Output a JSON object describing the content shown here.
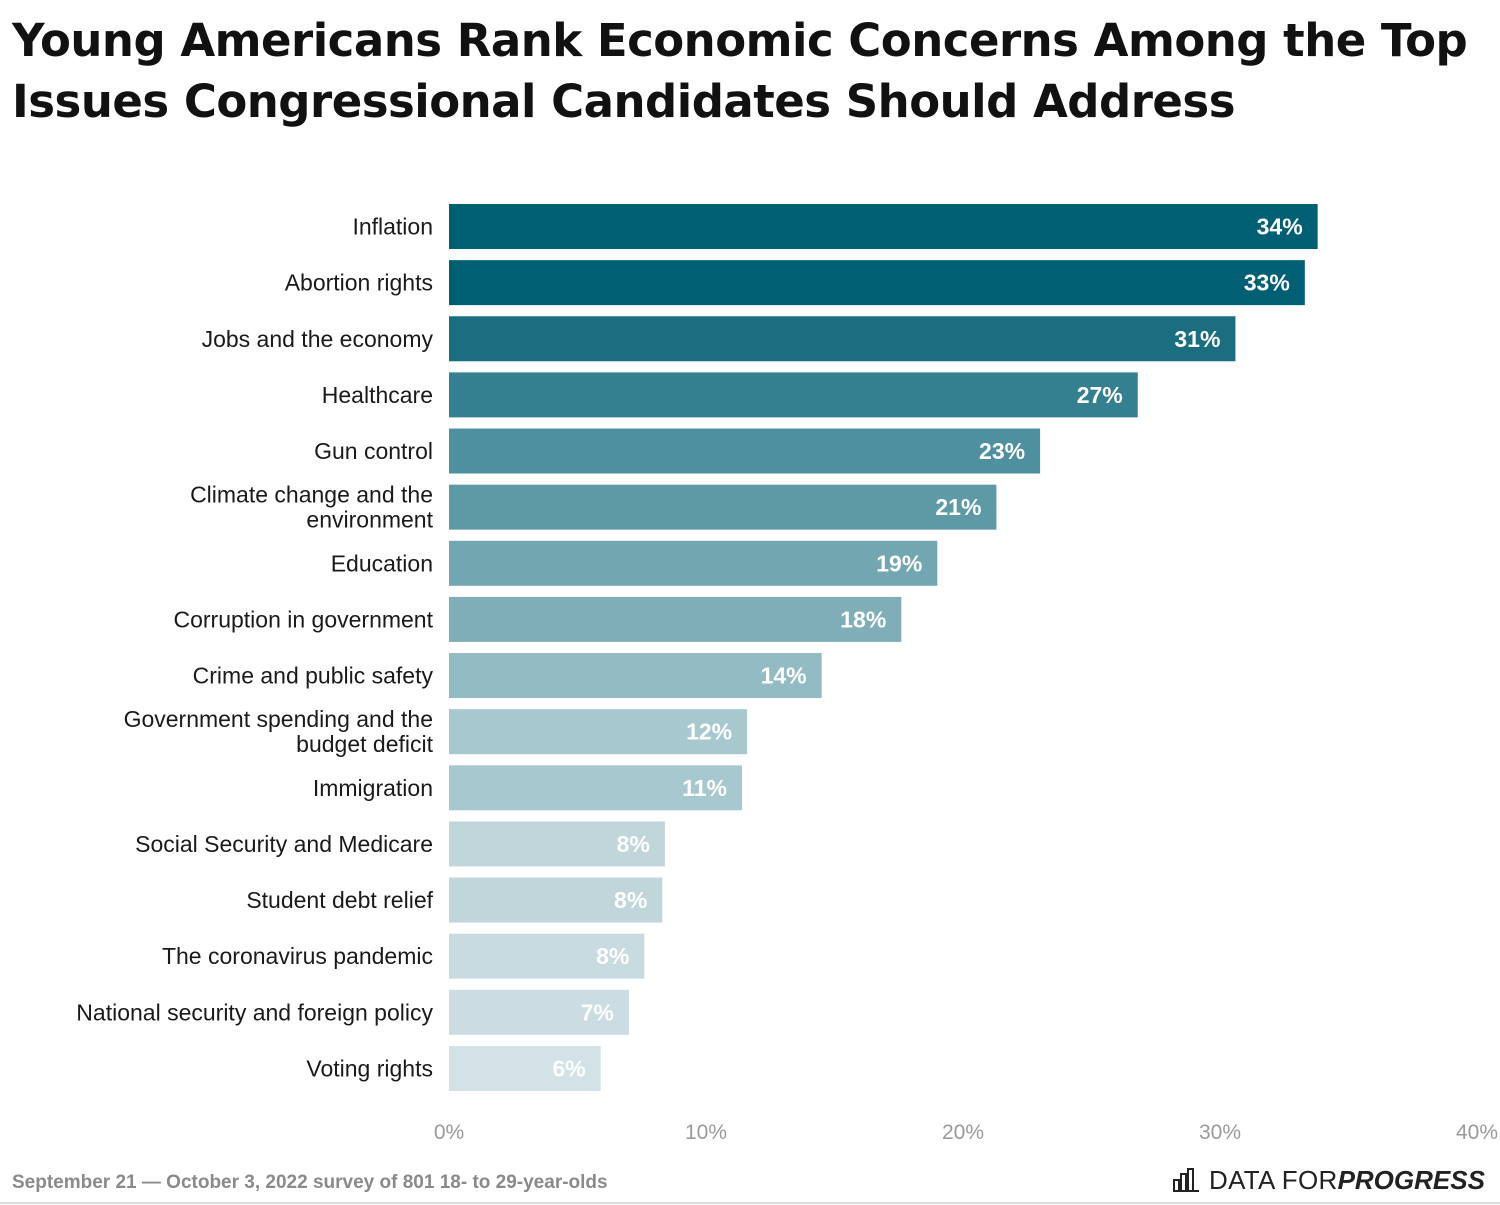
{
  "title_line1": "Young Americans Rank Economic Concerns Among the Top",
  "title_line2": "Issues Congressional Candidates Should Address",
  "footnote": "September 21 — October 3, 2022 survey of 801 18- to 29-year-olds",
  "brand": {
    "prefix": "DATA FOR ",
    "emphasis": "PROGRESS",
    "icon": "bar-chart-logo-icon"
  },
  "chart_data": {
    "type": "bar",
    "orientation": "horizontal",
    "title": "Young Americans Rank Economic Concerns Among the Top Issues Congressional Candidates Should Address",
    "xlabel": "",
    "ylabel": "",
    "xlim": [
      0,
      40
    ],
    "tick_values": [
      0,
      10,
      20,
      30,
      40
    ],
    "tick_labels": [
      "0%",
      "10%",
      "20%",
      "30%",
      "40%"
    ],
    "grid": false,
    "legend": "none",
    "categories": [
      [
        "Inflation"
      ],
      [
        "Abortion rights"
      ],
      [
        "Jobs and the economy"
      ],
      [
        "Healthcare"
      ],
      [
        "Gun control"
      ],
      [
        "Climate change and the",
        "environment"
      ],
      [
        "Education"
      ],
      [
        "Corruption in government"
      ],
      [
        "Crime and public safety"
      ],
      [
        "Government spending and the",
        "budget deficit"
      ],
      [
        "Immigration"
      ],
      [
        "Social Security and Medicare"
      ],
      [
        "Student debt relief"
      ],
      [
        "The coronavirus pandemic"
      ],
      [
        "National security and foreign policy"
      ],
      [
        "Voting rights"
      ]
    ],
    "values": [
      33.8,
      33.3,
      30.6,
      26.8,
      23.0,
      21.3,
      19.0,
      17.6,
      14.5,
      11.6,
      11.4,
      8.4,
      8.3,
      7.6,
      7.0,
      5.9
    ],
    "value_labels": [
      "34%",
      "33%",
      "31%",
      "27%",
      "23%",
      "21%",
      "19%",
      "18%",
      "14%",
      "12%",
      "11%",
      "8%",
      "8%",
      "8%",
      "7%",
      "6%"
    ],
    "colors": [
      "#005f73",
      "#005f73",
      "#1a6e80",
      "#358090",
      "#4e909f",
      "#5e9aa6",
      "#72a7b2",
      "#80aeb8",
      "#93bbc3",
      "#a8c8cf",
      "#a8c8cf",
      "#c0d6db",
      "#c0d6db",
      "#c7dbe0",
      "#cbdde2",
      "#d2e2e6"
    ]
  }
}
